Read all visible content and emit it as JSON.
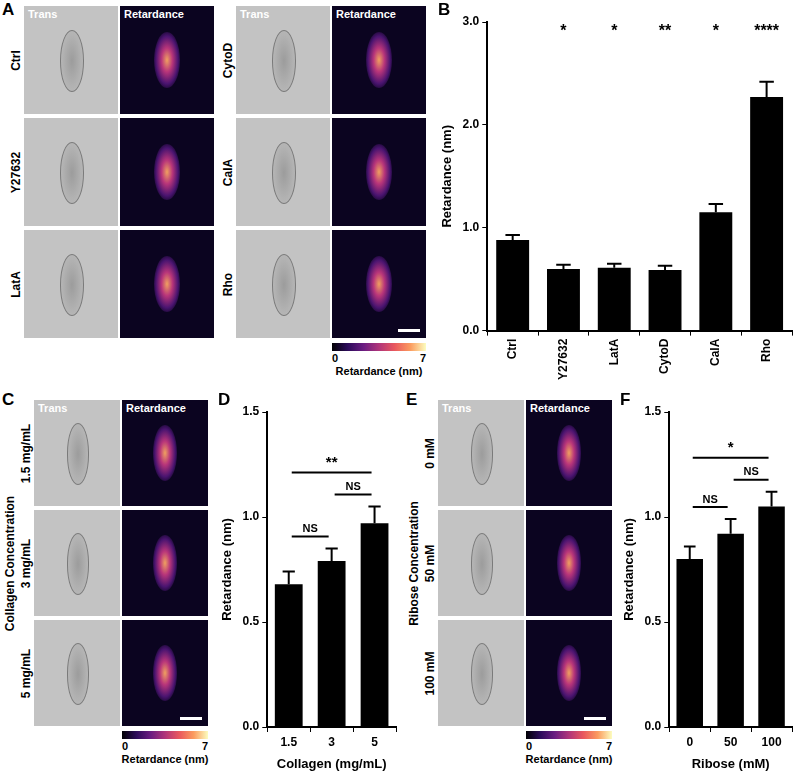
{
  "panels": [
    {
      "panel": "A",
      "columns": [
        "Trans",
        "Retardance"
      ],
      "groups": [
        {
          "rows": [
            "Ctrl",
            "Y27632",
            "LatA"
          ]
        },
        {
          "rows": [
            "CytoD",
            "CalA",
            "Rho"
          ]
        }
      ],
      "colorbar": {
        "range": [
          0,
          7
        ],
        "label": "Retardance (nm)"
      }
    },
    {
      "panel": "C",
      "columns": [
        "Trans",
        "Retardance"
      ],
      "group_label": "Collagen Concentration",
      "groups": [
        {
          "rows": [
            "1.5 mg/mL",
            "3 mg/mL",
            "5 mg/mL"
          ]
        }
      ],
      "colorbar": {
        "range": [
          0,
          7
        ],
        "label": "Retardance (nm)"
      }
    },
    {
      "panel": "E",
      "columns": [
        "Trans",
        "Retardance"
      ],
      "group_label": "Ribose Concentration",
      "groups": [
        {
          "rows": [
            "0 mM",
            "50 mM",
            "100 mM"
          ]
        }
      ],
      "colorbar": {
        "range": [
          0,
          7
        ],
        "label": "Retardance (nm)"
      }
    }
  ],
  "chart_data": [
    {
      "panel": "B",
      "type": "bar",
      "y_label": "Retardance (nm)",
      "categories": [
        "Ctrl",
        "Y27632",
        "LatA",
        "CytoD",
        "CalA",
        "Rho"
      ],
      "values": [
        0.88,
        0.6,
        0.61,
        0.59,
        1.15,
        2.27
      ],
      "errors": [
        0.05,
        0.04,
        0.04,
        0.04,
        0.08,
        0.15
      ],
      "color": "#000000",
      "ylim": [
        0,
        3
      ],
      "yticks": [
        {
          "value": 0,
          "label": "0.0"
        },
        {
          "value": 1,
          "label": "1.0"
        },
        {
          "value": 2,
          "label": "2.0"
        },
        {
          "value": 3,
          "label": "3.0"
        }
      ],
      "grid": false,
      "annotations": [
        {
          "category": "Y27632",
          "label": "*"
        },
        {
          "category": "LatA",
          "label": "*"
        },
        {
          "category": "CytoD",
          "label": "**"
        },
        {
          "category": "CalA",
          "label": "*"
        },
        {
          "category": "Rho",
          "label": "****"
        }
      ]
    },
    {
      "panel": "D",
      "type": "bar",
      "y_label": "Retardance (nm)",
      "x_label": "Collagen (mg/mL)",
      "categories": [
        "1.5",
        "3",
        "5"
      ],
      "values": [
        0.68,
        0.79,
        0.97
      ],
      "errors": [
        0.06,
        0.06,
        0.08
      ],
      "color": "#000000",
      "ylim": [
        0,
        1.5
      ],
      "yticks": [
        {
          "value": 0,
          "label": "0.0"
        },
        0.5,
        {
          "value": 1,
          "label": "1.0"
        },
        1.5
      ],
      "grid": false,
      "annotations": [
        {
          "between": [
            "1.5",
            "3"
          ],
          "label": "NS"
        },
        {
          "between": [
            "3",
            "5"
          ],
          "label": "NS"
        },
        {
          "between": [
            "1.5",
            "5"
          ],
          "label": "**"
        }
      ]
    },
    {
      "panel": "F",
      "type": "bar",
      "y_label": "Retardance (nm)",
      "x_label": "Ribose (mM)",
      "categories": [
        "0",
        "50",
        "100"
      ],
      "values": [
        0.8,
        0.92,
        1.05
      ],
      "errors": [
        0.06,
        0.07,
        0.07
      ],
      "color": "#000000",
      "ylim": [
        0,
        1.5
      ],
      "yticks": [
        {
          "value": 0,
          "label": "0.0"
        },
        0.5,
        {
          "value": 1,
          "label": "1.0"
        },
        1.5
      ],
      "grid": false,
      "annotations": [
        {
          "between": [
            "0",
            "50"
          ],
          "label": "NS"
        },
        {
          "between": [
            "50",
            "100"
          ],
          "label": "NS"
        },
        {
          "between": [
            "0",
            "100"
          ],
          "label": "*"
        }
      ]
    }
  ]
}
